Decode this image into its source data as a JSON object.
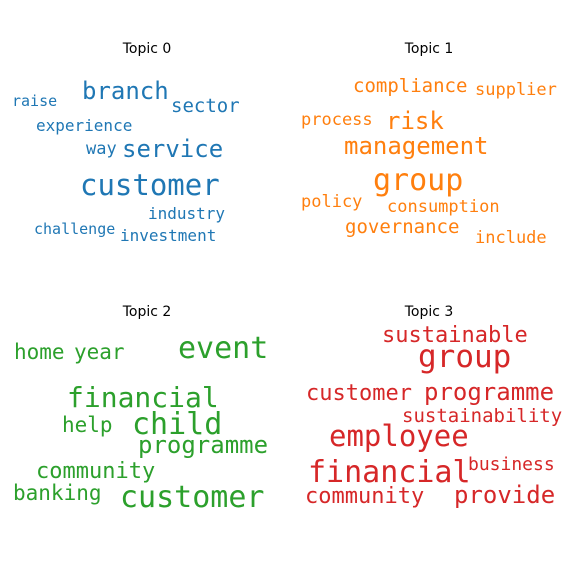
{
  "chart_data": {
    "type": "wordcloud",
    "panels": [
      {
        "title": "Topic 0",
        "color": "#1f77b4",
        "words": [
          "customer",
          "branch",
          "service",
          "sector",
          "way",
          "industry",
          "investment",
          "challenge",
          "experience",
          "raise"
        ]
      },
      {
        "title": "Topic 1",
        "color": "#ff7f0e",
        "words": [
          "group",
          "management",
          "risk",
          "compliance",
          "supplier",
          "process",
          "policy",
          "consumption",
          "governance",
          "include"
        ]
      },
      {
        "title": "Topic 2",
        "color": "#2ca02c",
        "words": [
          "customer",
          "financial",
          "event",
          "child",
          "programme",
          "community",
          "banking",
          "help",
          "home",
          "year"
        ]
      },
      {
        "title": "Topic 3",
        "color": "#d62728",
        "words": [
          "group",
          "employee",
          "financial",
          "programme",
          "customer",
          "sustainable",
          "community",
          "provide",
          "sustainability",
          "business"
        ]
      }
    ]
  }
}
